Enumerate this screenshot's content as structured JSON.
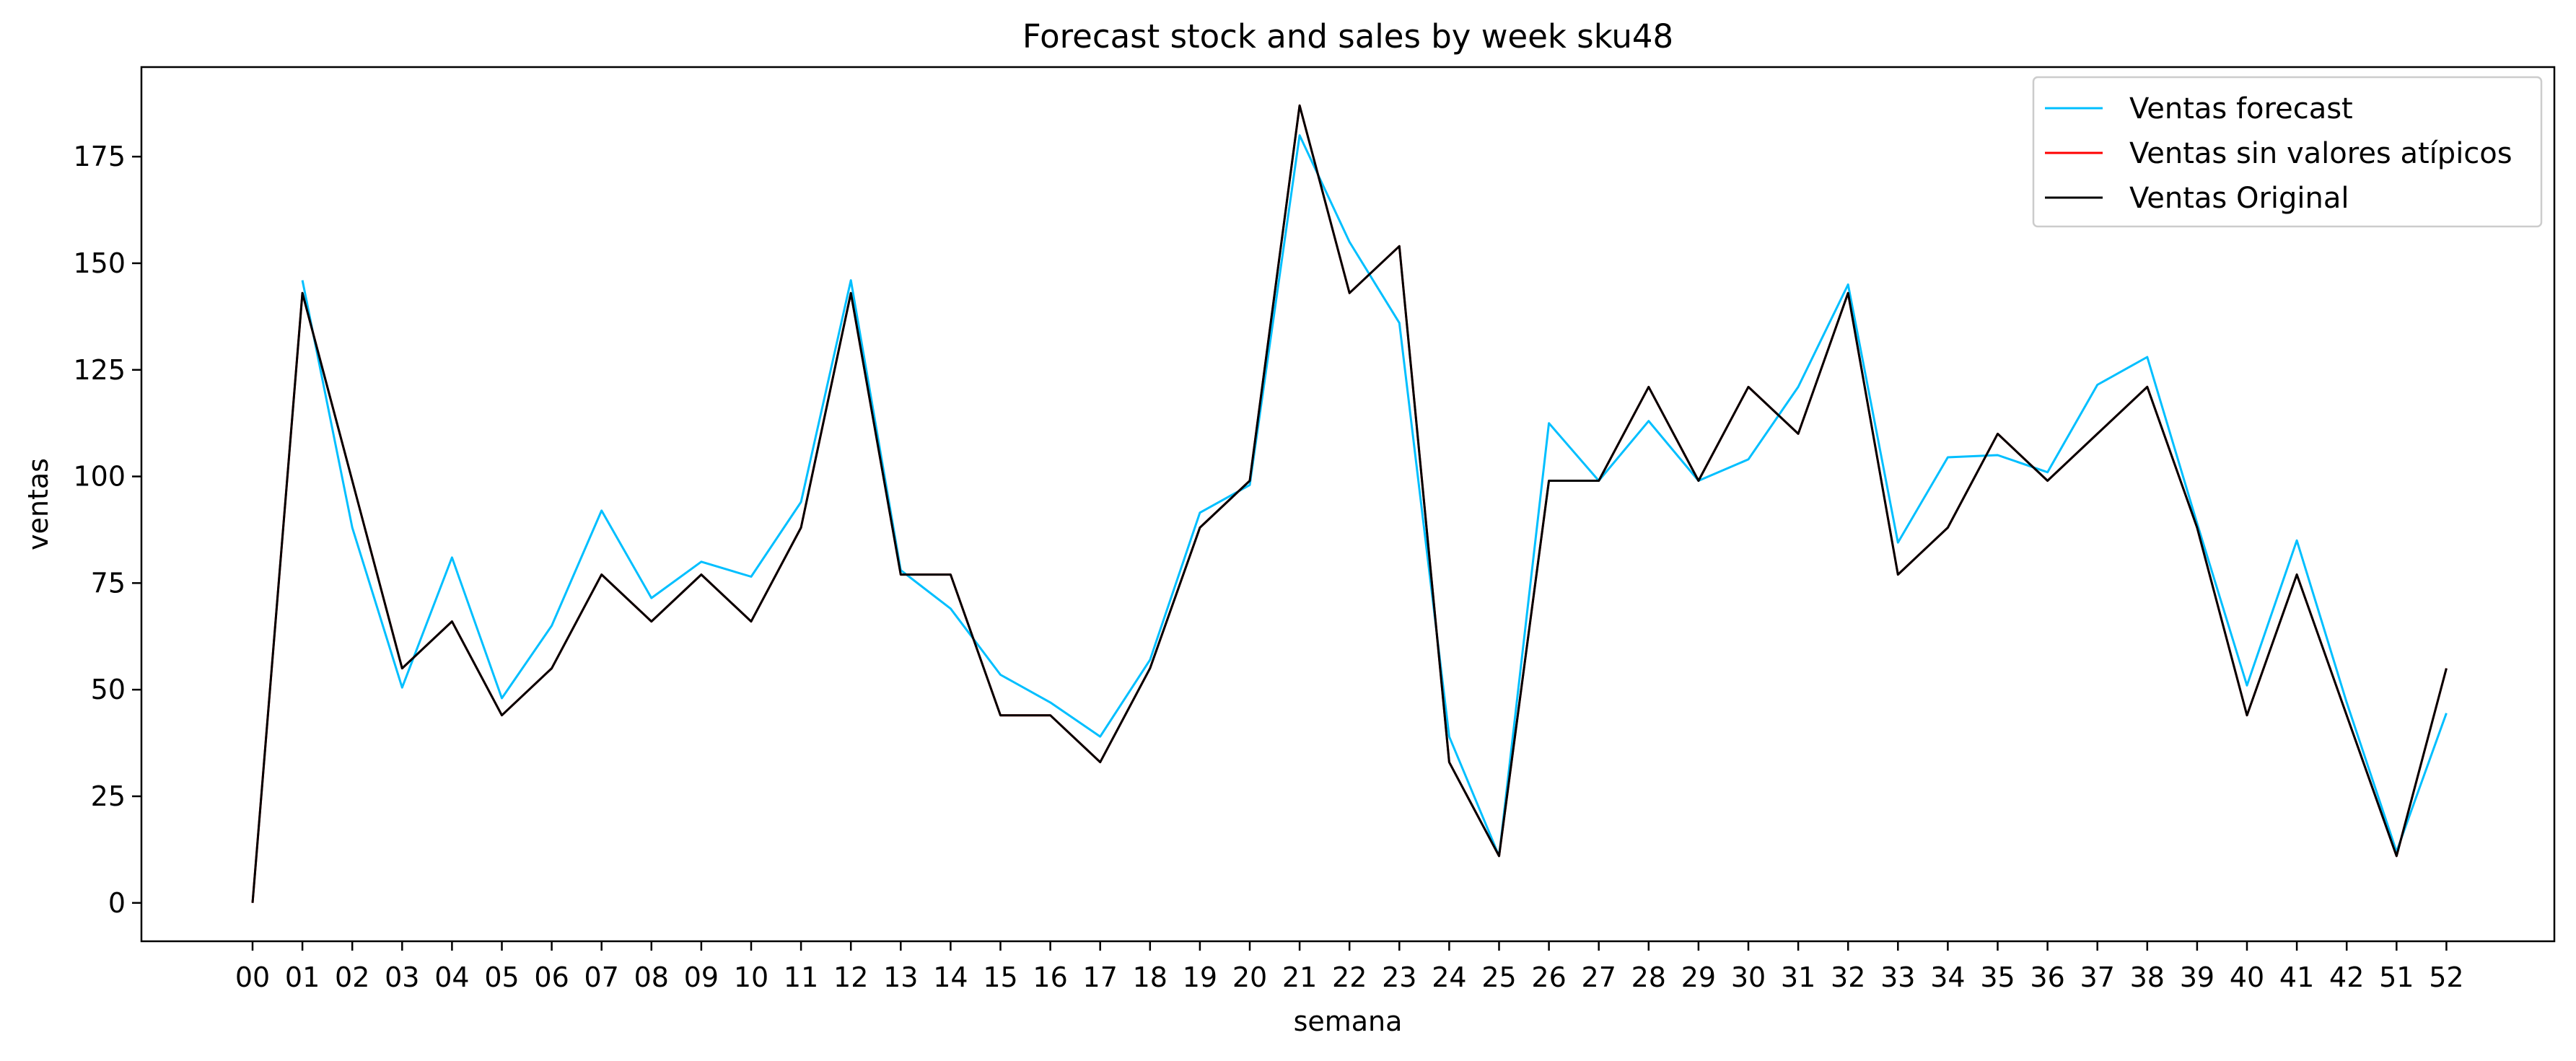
{
  "chart_data": {
    "type": "line",
    "title": "Forecast stock and sales by week sku48",
    "xlabel": "semana",
    "ylabel": "ventas",
    "categories": [
      "00",
      "01",
      "02",
      "03",
      "04",
      "05",
      "06",
      "07",
      "08",
      "09",
      "10",
      "11",
      "12",
      "13",
      "14",
      "15",
      "16",
      "17",
      "18",
      "19",
      "20",
      "21",
      "22",
      "23",
      "24",
      "25",
      "26",
      "27",
      "28",
      "29",
      "30",
      "31",
      "32",
      "33",
      "34",
      "35",
      "36",
      "37",
      "38",
      "39",
      "40",
      "41",
      "42",
      "51",
      "52"
    ],
    "ylim": [
      -9,
      196
    ],
    "yticks": [
      0,
      25,
      50,
      75,
      100,
      125,
      150,
      175
    ],
    "grid": false,
    "legend_position": "top-right",
    "series": [
      {
        "name": "Ventas forecast",
        "color": "#00bfff",
        "values": [
          null,
          146,
          88,
          50.5,
          81,
          48,
          65,
          92,
          71.5,
          80,
          76.5,
          94,
          146,
          78,
          69,
          53.5,
          47,
          39,
          57,
          91.5,
          98,
          180,
          155,
          136,
          39,
          11,
          112.5,
          99,
          113,
          99,
          104,
          121,
          145,
          84.5,
          104.5,
          105,
          101,
          121.5,
          128,
          89,
          51,
          85,
          47,
          12,
          44.5
        ]
      },
      {
        "name": "Ventas sin valores atípicos",
        "color": "#ff0000",
        "values": [
          0,
          143,
          99,
          55,
          66,
          44,
          55,
          77,
          66,
          77,
          66,
          88,
          143,
          77,
          77,
          44,
          44,
          33,
          55,
          88,
          99,
          187,
          143,
          154,
          33,
          11,
          99,
          99,
          121,
          99,
          121,
          110,
          143,
          77,
          88,
          110,
          99,
          110,
          121,
          88,
          44,
          77,
          44,
          11,
          55
        ]
      },
      {
        "name": "Ventas Original",
        "color": "#000000",
        "values": [
          0,
          143,
          99,
          55,
          66,
          44,
          55,
          77,
          66,
          77,
          66,
          88,
          143,
          77,
          77,
          44,
          44,
          33,
          55,
          88,
          99,
          187,
          143,
          154,
          33,
          11,
          99,
          99,
          121,
          99,
          121,
          110,
          143,
          77,
          88,
          110,
          99,
          110,
          121,
          88,
          44,
          77,
          44,
          11,
          55
        ]
      }
    ]
  }
}
